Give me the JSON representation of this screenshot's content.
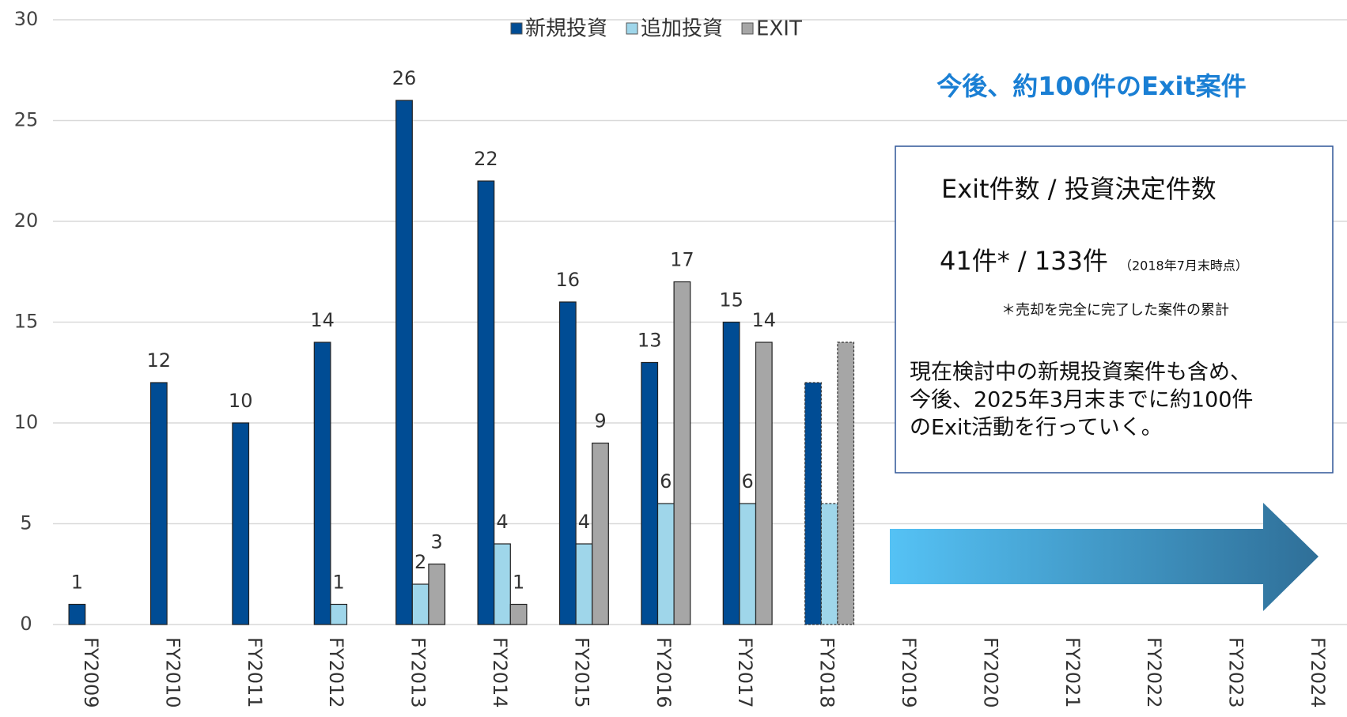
{
  "chart_data": {
    "type": "bar",
    "categories": [
      "FY2009",
      "FY2010",
      "FY2011",
      "FY2012",
      "FY2013",
      "FY2014",
      "FY2015",
      "FY2016",
      "FY2017",
      "FY2018",
      "FY2019",
      "FY2020",
      "FY2021",
      "FY2022",
      "FY2023",
      "FY2024"
    ],
    "series": [
      {
        "name": "新規投資",
        "color": "#004c94",
        "values": [
          1,
          12,
          10,
          14,
          26,
          22,
          16,
          13,
          15,
          12,
          null,
          null,
          null,
          null,
          null,
          null
        ],
        "value_labels": [
          "1",
          "12",
          "10",
          "14",
          "26",
          "22",
          "16",
          "13",
          "15",
          null,
          null,
          null,
          null,
          null,
          null,
          null
        ]
      },
      {
        "name": "追加投資",
        "color": "#9fd6ea",
        "values": [
          null,
          null,
          null,
          1,
          2,
          4,
          4,
          6,
          6,
          6,
          null,
          null,
          null,
          null,
          null,
          null
        ],
        "value_labels": [
          null,
          null,
          null,
          "1",
          "2",
          "4",
          "4",
          "6",
          "6",
          null,
          null,
          null,
          null,
          null,
          null,
          null
        ]
      },
      {
        "name": "EXIT",
        "color": "#a6a6a6",
        "values": [
          null,
          null,
          null,
          null,
          3,
          1,
          9,
          17,
          14,
          14,
          null,
          null,
          null,
          null,
          null,
          null
        ],
        "value_labels": [
          null,
          null,
          null,
          null,
          "3",
          "1",
          "9",
          "17",
          "14",
          null,
          null,
          null,
          null,
          null,
          null,
          null
        ]
      }
    ],
    "ylim": [
      0,
      30
    ],
    "yticks": [
      0,
      5,
      10,
      15,
      20,
      25,
      30
    ],
    "grid": true,
    "legend": "top",
    "annotations": {
      "headline": "今後、約100件のExit案件",
      "box_title": "Exit件数 / 投資決定件数",
      "box_count": "41件* / 133件",
      "box_date": "（2018年7月末時点）",
      "box_note": "＊売却を完全に完了した案件の累計",
      "box_text": [
        "現在検討中の新規投資案件も含め、",
        "今後、2025年3月末までに約100件",
        "のExit活動を行っていく。"
      ]
    }
  }
}
